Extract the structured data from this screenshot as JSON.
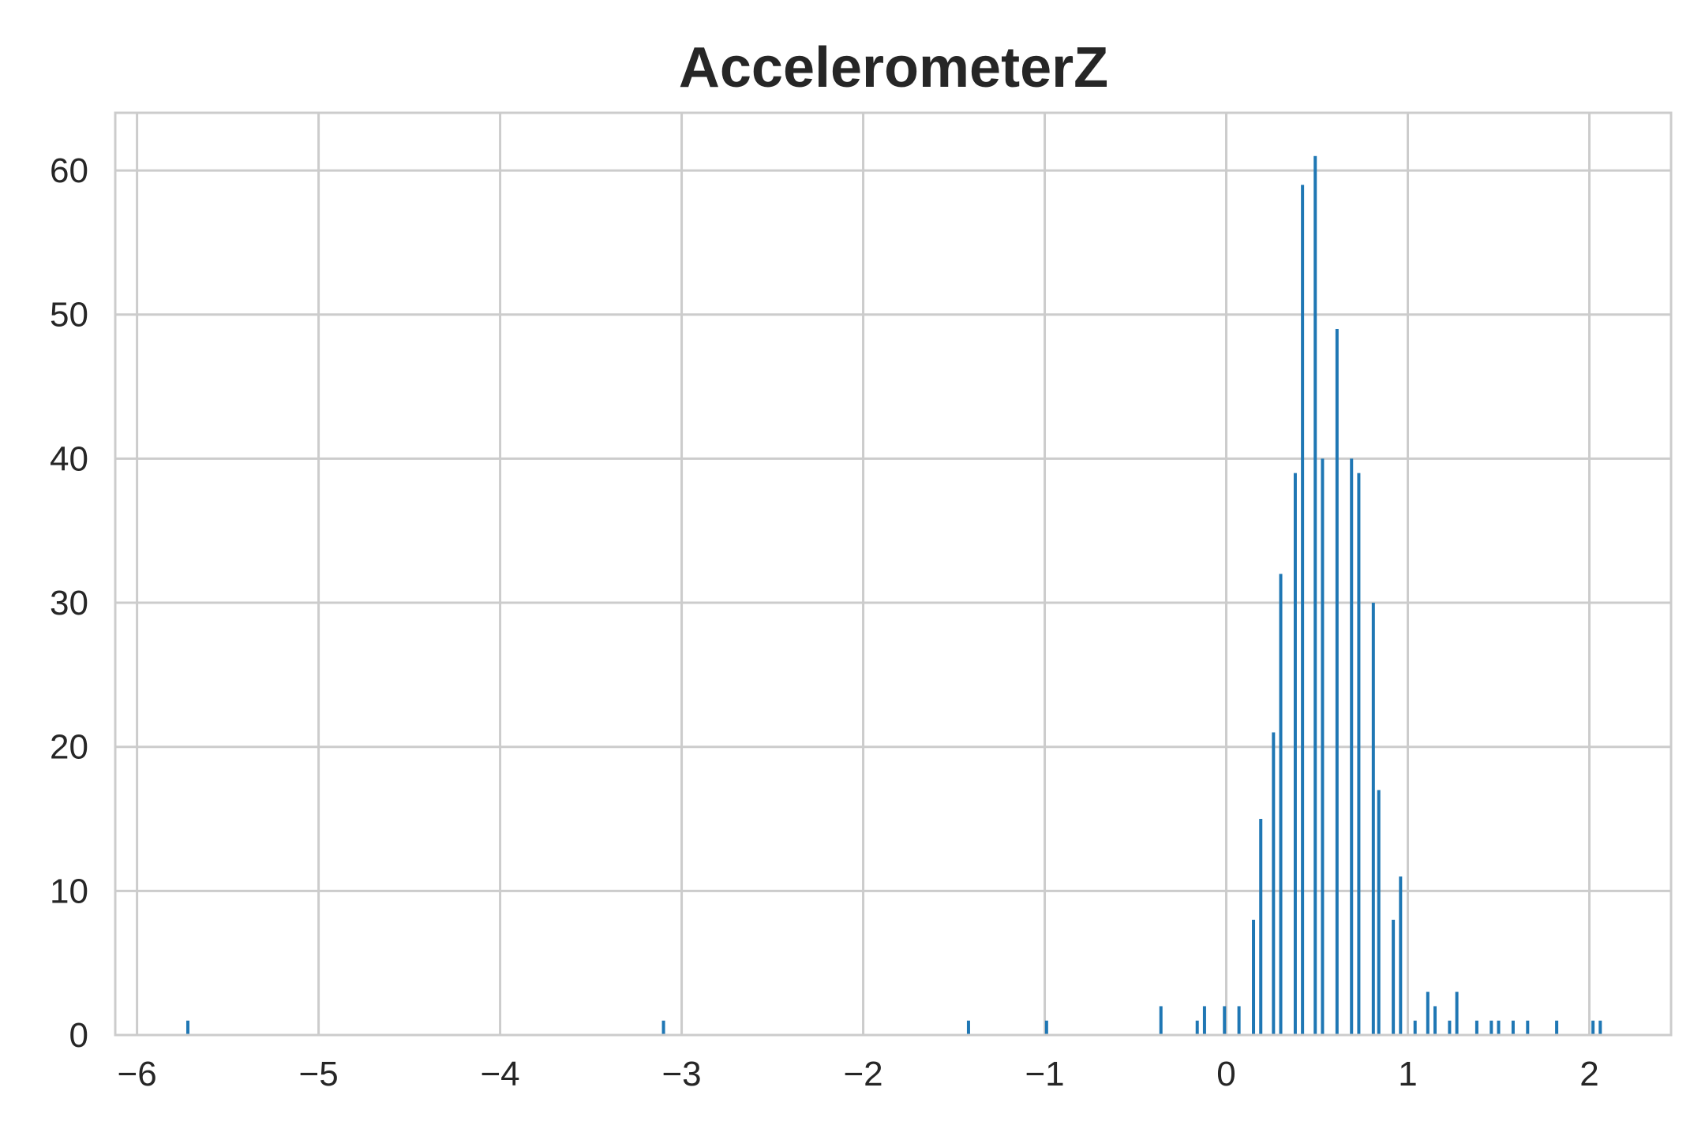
{
  "chart_data": {
    "type": "bar",
    "title": "AccelerometerZ",
    "xlabel": "",
    "ylabel": "",
    "xlim": [
      -6.12,
      2.45
    ],
    "ylim": [
      0,
      64
    ],
    "x_ticks": [
      -6,
      -5,
      -4,
      -3,
      -2,
      -1,
      0,
      1,
      2
    ],
    "x_tick_labels": [
      "−6",
      "−5",
      "−4",
      "−3",
      "−2",
      "−1",
      "0",
      "1",
      "2"
    ],
    "y_ticks": [
      0,
      10,
      20,
      30,
      40,
      50,
      60
    ],
    "y_tick_labels": [
      "0",
      "10",
      "20",
      "30",
      "40",
      "50",
      "60"
    ],
    "grid": true,
    "bar_color": "#1f77b4",
    "bins": [
      {
        "x": -5.72,
        "count": 1
      },
      {
        "x": -3.1,
        "count": 1
      },
      {
        "x": -1.42,
        "count": 1
      },
      {
        "x": -0.99,
        "count": 1
      },
      {
        "x": -0.36,
        "count": 2
      },
      {
        "x": -0.16,
        "count": 1
      },
      {
        "x": -0.12,
        "count": 2
      },
      {
        "x": -0.01,
        "count": 2
      },
      {
        "x": 0.07,
        "count": 2
      },
      {
        "x": 0.15,
        "count": 8
      },
      {
        "x": 0.19,
        "count": 15
      },
      {
        "x": 0.26,
        "count": 21
      },
      {
        "x": 0.3,
        "count": 32
      },
      {
        "x": 0.38,
        "count": 39
      },
      {
        "x": 0.42,
        "count": 59
      },
      {
        "x": 0.49,
        "count": 61
      },
      {
        "x": 0.53,
        "count": 40
      },
      {
        "x": 0.61,
        "count": 49
      },
      {
        "x": 0.69,
        "count": 40
      },
      {
        "x": 0.73,
        "count": 39
      },
      {
        "x": 0.81,
        "count": 30
      },
      {
        "x": 0.84,
        "count": 17
      },
      {
        "x": 0.92,
        "count": 8
      },
      {
        "x": 0.96,
        "count": 11
      },
      {
        "x": 1.04,
        "count": 1
      },
      {
        "x": 1.11,
        "count": 3
      },
      {
        "x": 1.15,
        "count": 2
      },
      {
        "x": 1.23,
        "count": 1
      },
      {
        "x": 1.27,
        "count": 3
      },
      {
        "x": 1.38,
        "count": 1
      },
      {
        "x": 1.46,
        "count": 1
      },
      {
        "x": 1.5,
        "count": 1
      },
      {
        "x": 1.58,
        "count": 1
      },
      {
        "x": 1.66,
        "count": 1
      },
      {
        "x": 1.82,
        "count": 1
      },
      {
        "x": 2.02,
        "count": 1
      },
      {
        "x": 2.06,
        "count": 1
      }
    ]
  }
}
